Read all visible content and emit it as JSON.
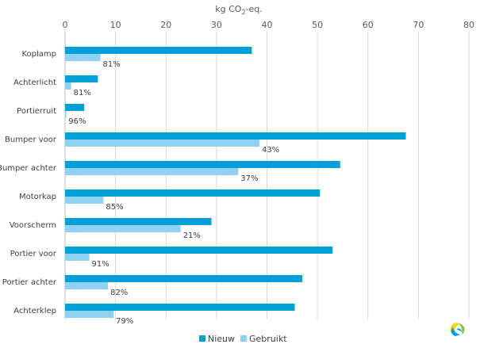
{
  "chart_data": {
    "type": "bar",
    "orientation": "horizontal",
    "title_main": "kg CO",
    "title_sub": "2",
    "title_tail": "-eq.",
    "xlim": [
      0,
      80
    ],
    "xticks": [
      0,
      10,
      20,
      30,
      40,
      50,
      60,
      70,
      80
    ],
    "categories": [
      "Koplamp",
      "Achterlicht",
      "Portierruit",
      "Bumper voor",
      "Bumper achter",
      "Motorkap",
      "Voorscherm",
      "Portier voor",
      "Portier achter",
      "Achterklep"
    ],
    "series": [
      {
        "name": "Nieuw",
        "color": "#009fd6",
        "values": [
          37,
          6.5,
          3.8,
          67.5,
          54.5,
          50.5,
          29,
          53,
          47,
          45.5
        ]
      },
      {
        "name": "Gebruikt",
        "color": "#8fd1f3",
        "values": [
          7,
          1.2,
          0.2,
          38.5,
          34.3,
          7.6,
          22.9,
          4.8,
          8.5,
          9.6
        ]
      }
    ],
    "data_labels": [
      "81%",
      "81%",
      "96%",
      "43%",
      "37%",
      "85%",
      "21%",
      "91%",
      "82%",
      "79%"
    ],
    "grid": true,
    "legend_position": "bottom"
  },
  "logo": {
    "name": "brand-logo-icon",
    "colors": [
      "#f6d31c",
      "#00a3e0",
      "#7fc241"
    ]
  }
}
